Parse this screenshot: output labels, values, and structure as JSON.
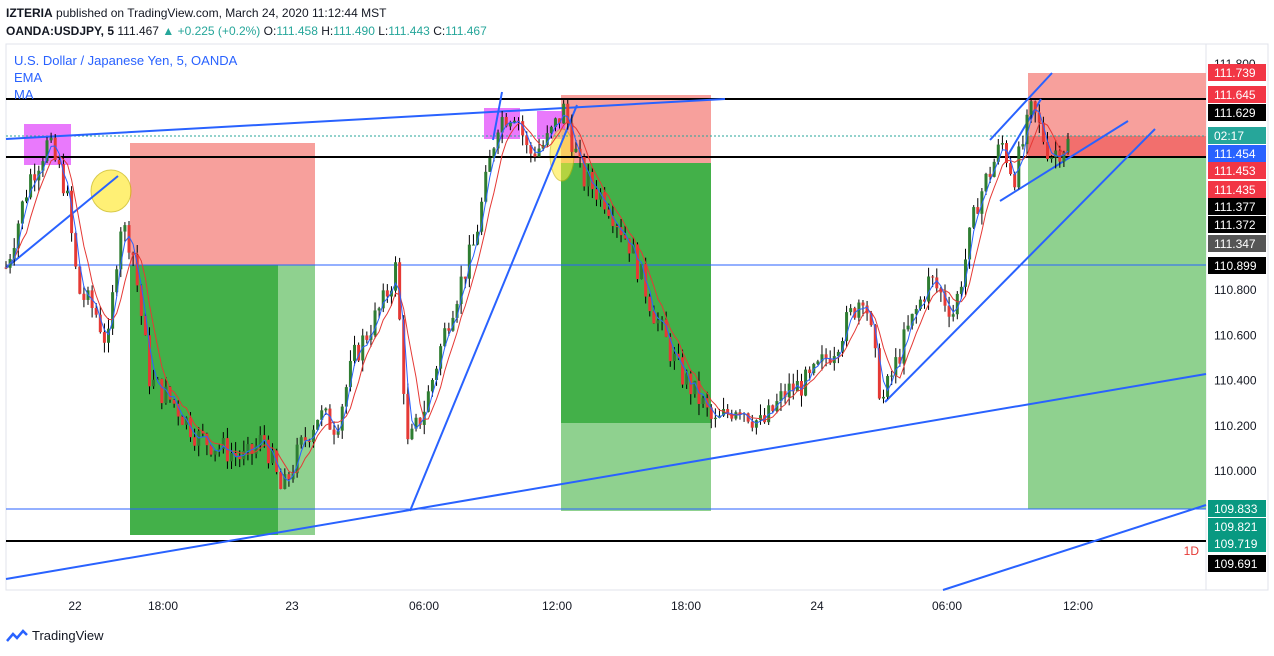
{
  "header": {
    "author": "IZTERIA",
    "published": "published on TradingView.com, March 24, 2020 11:12:44 MST",
    "symbol": "OANDA:USDJPY, 5",
    "last": "111.467",
    "change": "+0.225 (+0.2%)",
    "o_label": "O:",
    "o": "111.458",
    "h_label": "H:",
    "h": "111.490",
    "l_label": "L:",
    "l": "111.443",
    "c_label": "C:",
    "c": "111.467"
  },
  "legend": {
    "instrument": "U.S. Dollar / Japanese Yen, 5, OANDA",
    "ind1": "EMA",
    "ind2": "MA"
  },
  "footer": {
    "brand": "TradingView"
  },
  "interval_label": "1D",
  "colors": {
    "up": "#26a69a",
    "candle_up": "#2e7d32",
    "candle_down": "#e53935",
    "blue": "#2962ff",
    "red_zone": "#f7a09c",
    "green_zone": "#4cb84c",
    "light_green": "#8fd18f",
    "magenta": "#e040fb",
    "yellow": "#ffeb3b"
  },
  "chart_data": {
    "type": "candlestick",
    "title": "U.S. Dollar / Japanese Yen, 5, OANDA",
    "ylim": [
      109.6,
      111.85
    ],
    "y_ticks": [
      "111.800",
      "110.800",
      "110.600",
      "110.400",
      "110.200",
      "110.000"
    ],
    "x_ticks": [
      "22",
      "18:00",
      "23",
      "06:00",
      "12:00",
      "18:00",
      "24",
      "06:00",
      "12:00"
    ],
    "price_labels": [
      {
        "value": "111.739",
        "bg": "#f23645"
      },
      {
        "value": "111.645",
        "bg": "#f23645"
      },
      {
        "value": "111.629",
        "bg": "#000000"
      },
      {
        "value": "02:17",
        "bg": "#26a69a"
      },
      {
        "value": "111.454",
        "bg": "#2962ff"
      },
      {
        "value": "111.453",
        "bg": "#f23645"
      },
      {
        "value": "111.435",
        "bg": "#f23645"
      },
      {
        "value": "111.377",
        "bg": "#000000"
      },
      {
        "value": "111.372",
        "bg": "#000000"
      },
      {
        "value": "111.347",
        "bg": "#555555"
      },
      {
        "value": "110.899",
        "bg": "#000000"
      },
      {
        "value": "109.833",
        "bg": "#089981"
      },
      {
        "value": "109.821",
        "bg": "#089981"
      },
      {
        "value": "109.719",
        "bg": "#089981"
      },
      {
        "value": "109.691",
        "bg": "#000000"
      }
    ],
    "horizontal_levels": [
      111.645,
      111.454,
      110.899,
      109.833,
      109.691
    ],
    "close_path": [
      [
        0,
        110.9
      ],
      [
        0.02,
        111.3
      ],
      [
        0.035,
        111.45
      ],
      [
        0.05,
        111.25
      ],
      [
        0.06,
        110.8
      ],
      [
        0.075,
        110.7
      ],
      [
        0.085,
        110.55
      ],
      [
        0.095,
        111.1
      ],
      [
        0.105,
        111.0
      ],
      [
        0.12,
        110.4
      ],
      [
        0.14,
        110.3
      ],
      [
        0.16,
        110.15
      ],
      [
        0.18,
        110.1
      ],
      [
        0.2,
        110.05
      ],
      [
        0.215,
        110.15
      ],
      [
        0.23,
        109.9
      ],
      [
        0.245,
        110.1
      ],
      [
        0.26,
        110.25
      ],
      [
        0.275,
        110.2
      ],
      [
        0.29,
        110.5
      ],
      [
        0.3,
        110.6
      ],
      [
        0.315,
        110.75
      ],
      [
        0.325,
        110.9
      ],
      [
        0.335,
        110.1
      ],
      [
        0.35,
        110.3
      ],
      [
        0.37,
        110.7
      ],
      [
        0.39,
        111.0
      ],
      [
        0.41,
        111.55
      ],
      [
        0.425,
        111.6
      ],
      [
        0.435,
        111.4
      ],
      [
        0.45,
        111.45
      ],
      [
        0.465,
        111.6
      ],
      [
        0.48,
        111.3
      ],
      [
        0.5,
        111.2
      ],
      [
        0.52,
        111.0
      ],
      [
        0.54,
        110.7
      ],
      [
        0.56,
        110.45
      ],
      [
        0.58,
        110.3
      ],
      [
        0.59,
        110.2
      ],
      [
        0.61,
        110.3
      ],
      [
        0.63,
        110.2
      ],
      [
        0.65,
        110.35
      ],
      [
        0.67,
        110.4
      ],
      [
        0.69,
        110.55
      ],
      [
        0.715,
        110.8
      ],
      [
        0.73,
        110.3
      ],
      [
        0.75,
        110.6
      ],
      [
        0.77,
        110.85
      ],
      [
        0.79,
        110.7
      ],
      [
        0.81,
        111.2
      ],
      [
        0.83,
        111.45
      ],
      [
        0.84,
        111.3
      ],
      [
        0.855,
        111.6
      ],
      [
        0.87,
        111.4
      ],
      [
        0.885,
        111.45
      ]
    ]
  }
}
